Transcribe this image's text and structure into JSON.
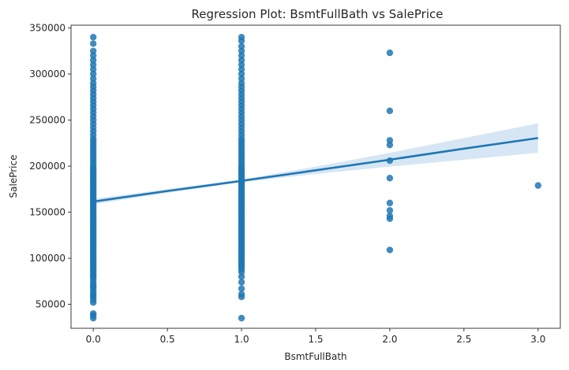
{
  "chart_data": {
    "type": "scatter",
    "title": "Regression Plot: BsmtFullBath vs SalePrice",
    "xlabel": "BsmtFullBath",
    "ylabel": "SalePrice",
    "xlim": [
      -0.15,
      3.15
    ],
    "ylim": [
      24000,
      353000
    ],
    "x_ticks": [
      0.0,
      0.5,
      1.0,
      1.5,
      2.0,
      2.5,
      3.0
    ],
    "x_tick_labels": [
      "0.0",
      "0.5",
      "1.0",
      "1.5",
      "2.0",
      "2.5",
      "3.0"
    ],
    "y_ticks": [
      50000,
      100000,
      150000,
      200000,
      250000,
      300000,
      350000
    ],
    "y_tick_labels": [
      "50000",
      "100000",
      "150000",
      "200000",
      "250000",
      "300000",
      "350000"
    ],
    "grid": false,
    "colors": {
      "points": "#1f77b4",
      "line": "#1f77b4",
      "band": "#c6dbef"
    },
    "points_x0": [
      35000,
      38000,
      40000,
      52000,
      55000,
      58000,
      60000,
      62000,
      65000,
      68000,
      70000,
      72000,
      75000,
      78000,
      80000,
      82000,
      84000,
      86000,
      88000,
      90000,
      92000,
      94000,
      96000,
      98000,
      100000,
      102000,
      104000,
      106000,
      108000,
      110000,
      112000,
      114000,
      116000,
      118000,
      120000,
      122000,
      124000,
      126000,
      128000,
      130000,
      132000,
      134000,
      136000,
      138000,
      140000,
      142000,
      144000,
      146000,
      148000,
      150000,
      152000,
      154000,
      156000,
      158000,
      160000,
      162000,
      164000,
      166000,
      168000,
      170000,
      172000,
      174000,
      176000,
      178000,
      180000,
      182000,
      184000,
      186000,
      188000,
      190000,
      192000,
      194000,
      196000,
      198000,
      200000,
      203000,
      206000,
      209000,
      212000,
      215000,
      218000,
      221000,
      224000,
      227000,
      230000,
      234000,
      238000,
      242000,
      246000,
      250000,
      254000,
      258000,
      262000,
      266000,
      270000,
      274000,
      278000,
      282000,
      286000,
      290000,
      295000,
      300000,
      305000,
      310000,
      315000,
      320000,
      325000,
      333000,
      340000
    ],
    "points_x1": [
      35000,
      58000,
      61000,
      67000,
      74000,
      80000,
      85000,
      88000,
      90000,
      92000,
      94000,
      96000,
      98000,
      100000,
      102000,
      104000,
      106000,
      108000,
      110000,
      112000,
      114000,
      116000,
      118000,
      120000,
      122000,
      124000,
      126000,
      128000,
      130000,
      132000,
      134000,
      136000,
      138000,
      140000,
      142000,
      144000,
      146000,
      148000,
      150000,
      152000,
      154000,
      156000,
      158000,
      160000,
      162000,
      164000,
      166000,
      168000,
      170000,
      172000,
      174000,
      176000,
      178000,
      180000,
      182000,
      184000,
      186000,
      188000,
      190000,
      192000,
      194000,
      196000,
      198000,
      200000,
      203000,
      206000,
      209000,
      212000,
      215000,
      218000,
      221000,
      224000,
      227000,
      230000,
      234000,
      238000,
      242000,
      246000,
      250000,
      254000,
      258000,
      262000,
      266000,
      270000,
      274000,
      278000,
      282000,
      286000,
      290000,
      295000,
      300000,
      305000,
      310000,
      315000,
      320000,
      325000,
      330000,
      336000,
      340000
    ],
    "points_other": [
      {
        "x": 2,
        "y": 109000
      },
      {
        "x": 2,
        "y": 143000
      },
      {
        "x": 2,
        "y": 146000
      },
      {
        "x": 2,
        "y": 152000
      },
      {
        "x": 2,
        "y": 160000
      },
      {
        "x": 2,
        "y": 187000
      },
      {
        "x": 2,
        "y": 206000
      },
      {
        "x": 2,
        "y": 223000
      },
      {
        "x": 2,
        "y": 228000
      },
      {
        "x": 2,
        "y": 260000
      },
      {
        "x": 2,
        "y": 323000
      },
      {
        "x": 3,
        "y": 179000
      }
    ],
    "regression": {
      "x": [
        0,
        0.5,
        1,
        1.5,
        2,
        2.5,
        3
      ],
      "y": [
        161500,
        173000,
        184000,
        195500,
        207000,
        219000,
        230500
      ],
      "lower": [
        158500,
        171000,
        182500,
        191500,
        199500,
        207000,
        214500
      ],
      "upper": [
        164500,
        175000,
        185500,
        199500,
        214500,
        230500,
        246500
      ]
    }
  }
}
